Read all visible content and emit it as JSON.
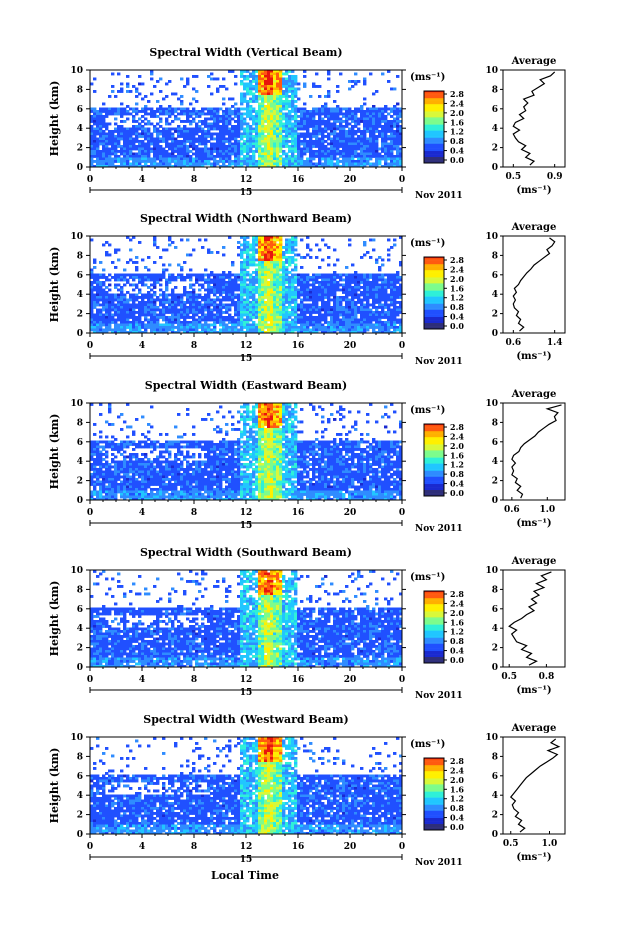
{
  "figure": {
    "xlabel": "Local Time",
    "ylabel": "Height (km)",
    "date_label": "Nov 2011",
    "colorbar_unit": "(ms⁻¹)",
    "colorbar_ticks": [
      "2.8",
      "2.4",
      "2.0",
      "1.6",
      "1.2",
      "0.8",
      "0.4",
      "0.0"
    ],
    "day_marker": "15",
    "average_title": "Average",
    "average_unit": "(ms⁻¹)",
    "colormap": [
      "#2f2f7a",
      "#1a2ad0",
      "#2050ff",
      "#2f8cff",
      "#21c6ff",
      "#2ff0d8",
      "#7dfc8c",
      "#d8f83a",
      "#fff000",
      "#ffb000",
      "#ff5a10",
      "#e8160c"
    ]
  },
  "chart_data": [
    {
      "type": "heatmap",
      "title": "Spectral Width (Vertical Beam)",
      "x_ticks": [
        "0",
        "4",
        "8",
        "12",
        "16",
        "20",
        "0"
      ],
      "y_ticks": [
        "0",
        "2",
        "4",
        "6",
        "8",
        "10"
      ],
      "xlim": [
        0,
        24
      ],
      "ylim": [
        0,
        10
      ],
      "clim": [
        0.0,
        3.0
      ],
      "avg_ticks": [
        "0.5",
        "0.9"
      ],
      "avg_xlim": [
        0.4,
        1.0
      ],
      "avg_profile": {
        "height": [
          0.2,
          0.6,
          1.0,
          1.4,
          1.8,
          2.2,
          2.6,
          3.0,
          3.4,
          3.8,
          4.2,
          4.6,
          5.0,
          5.4,
          5.8,
          6.2,
          6.6,
          7.0,
          7.4,
          7.8,
          8.2,
          8.6,
          9.0,
          9.4,
          9.8
        ],
        "value": [
          0.66,
          0.7,
          0.62,
          0.66,
          0.58,
          0.62,
          0.55,
          0.52,
          0.5,
          0.56,
          0.5,
          0.52,
          0.6,
          0.56,
          0.62,
          0.6,
          0.64,
          0.6,
          0.7,
          0.68,
          0.74,
          0.8,
          0.76,
          0.86,
          0.9
        ]
      }
    },
    {
      "type": "heatmap",
      "title": "Spectral Width (Northward Beam)",
      "x_ticks": [
        "0",
        "4",
        "8",
        "12",
        "16",
        "20",
        "0"
      ],
      "y_ticks": [
        "0",
        "2",
        "4",
        "6",
        "8",
        "10"
      ],
      "xlim": [
        0,
        24
      ],
      "ylim": [
        0,
        10
      ],
      "clim": [
        0.0,
        3.0
      ],
      "avg_ticks": [
        "0.6",
        "1.4"
      ],
      "avg_xlim": [
        0.4,
        1.6
      ],
      "avg_profile": {
        "height": [
          0.2,
          0.6,
          1.0,
          1.4,
          1.8,
          2.2,
          2.6,
          3.0,
          3.4,
          3.8,
          4.2,
          4.6,
          5.0,
          5.4,
          5.8,
          6.2,
          6.6,
          7.0,
          7.4,
          7.8,
          8.2,
          8.6,
          9.0,
          9.4,
          9.8
        ],
        "value": [
          0.72,
          0.8,
          0.7,
          0.74,
          0.66,
          0.7,
          0.62,
          0.6,
          0.64,
          0.6,
          0.66,
          0.62,
          0.7,
          0.74,
          0.8,
          0.86,
          0.94,
          1.0,
          1.1,
          1.2,
          1.3,
          1.25,
          1.35,
          1.4,
          1.3
        ]
      }
    },
    {
      "type": "heatmap",
      "title": "Spectral Width (Eastward Beam)",
      "x_ticks": [
        "0",
        "4",
        "8",
        "12",
        "16",
        "20",
        "0"
      ],
      "y_ticks": [
        "0",
        "2",
        "4",
        "6",
        "8",
        "10"
      ],
      "xlim": [
        0,
        24
      ],
      "ylim": [
        0,
        10
      ],
      "clim": [
        0.0,
        3.0
      ],
      "avg_ticks": [
        "0.6",
        "1.0"
      ],
      "avg_xlim": [
        0.5,
        1.2
      ],
      "avg_profile": {
        "height": [
          0.2,
          0.6,
          1.0,
          1.4,
          1.8,
          2.2,
          2.6,
          3.0,
          3.4,
          3.8,
          4.2,
          4.6,
          5.0,
          5.4,
          5.8,
          6.2,
          6.6,
          7.0,
          7.4,
          7.8,
          8.2,
          8.6,
          9.0,
          9.4,
          9.8
        ],
        "value": [
          0.7,
          0.72,
          0.66,
          0.7,
          0.64,
          0.66,
          0.6,
          0.62,
          0.6,
          0.64,
          0.6,
          0.62,
          0.68,
          0.7,
          0.74,
          0.8,
          0.86,
          0.9,
          0.96,
          1.02,
          1.1,
          1.08,
          1.12,
          1.0,
          1.16
        ]
      }
    },
    {
      "type": "heatmap",
      "title": "Spectral Width (Southward Beam)",
      "x_ticks": [
        "0",
        "4",
        "8",
        "12",
        "16",
        "20",
        "0"
      ],
      "y_ticks": [
        "0",
        "2",
        "4",
        "6",
        "8",
        "10"
      ],
      "xlim": [
        0,
        24
      ],
      "ylim": [
        0,
        10
      ],
      "clim": [
        0.0,
        3.0
      ],
      "avg_ticks": [
        "0.5",
        "0.8"
      ],
      "avg_xlim": [
        0.45,
        0.95
      ],
      "avg_profile": {
        "height": [
          0.2,
          0.6,
          1.0,
          1.4,
          1.8,
          2.2,
          2.6,
          3.0,
          3.4,
          3.8,
          4.2,
          4.6,
          5.0,
          5.4,
          5.8,
          6.2,
          6.6,
          7.0,
          7.4,
          7.8,
          8.2,
          8.6,
          9.0,
          9.4,
          9.8
        ],
        "value": [
          0.66,
          0.72,
          0.64,
          0.68,
          0.6,
          0.64,
          0.56,
          0.54,
          0.52,
          0.56,
          0.5,
          0.54,
          0.6,
          0.64,
          0.7,
          0.66,
          0.72,
          0.68,
          0.74,
          0.7,
          0.78,
          0.72,
          0.8,
          0.76,
          0.84
        ]
      }
    },
    {
      "type": "heatmap",
      "title": "Spectral Width (Westward Beam)",
      "x_ticks": [
        "0",
        "4",
        "8",
        "12",
        "16",
        "20",
        "0"
      ],
      "y_ticks": [
        "0",
        "2",
        "4",
        "6",
        "8",
        "10"
      ],
      "xlim": [
        0,
        24
      ],
      "ylim": [
        0,
        10
      ],
      "clim": [
        0.0,
        3.0
      ],
      "avg_ticks": [
        "0.5",
        "1.0"
      ],
      "avg_xlim": [
        0.4,
        1.2
      ],
      "avg_profile": {
        "height": [
          0.2,
          0.6,
          1.0,
          1.4,
          1.8,
          2.2,
          2.6,
          3.0,
          3.4,
          3.8,
          4.2,
          4.6,
          5.0,
          5.4,
          5.8,
          6.2,
          6.6,
          7.0,
          7.4,
          7.8,
          8.2,
          8.6,
          9.0,
          9.4,
          9.8
        ],
        "value": [
          0.62,
          0.68,
          0.6,
          0.64,
          0.56,
          0.6,
          0.54,
          0.52,
          0.56,
          0.5,
          0.54,
          0.58,
          0.62,
          0.66,
          0.7,
          0.76,
          0.82,
          0.88,
          0.96,
          1.04,
          1.1,
          0.98,
          1.12,
          1.02,
          1.08
        ]
      }
    }
  ]
}
